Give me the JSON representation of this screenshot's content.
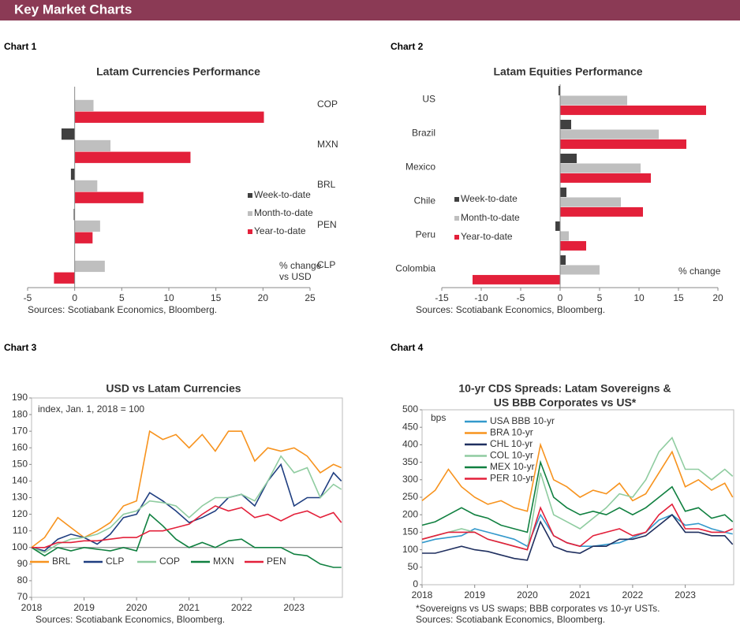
{
  "page_title": "Key Market Charts",
  "chart_data": [
    {
      "type": "bar",
      "orientation": "horizontal",
      "label": "Chart 1",
      "title": "Latam Currencies Performance",
      "categories": [
        "COP",
        "MXN",
        "BRL",
        "PEN",
        "CLP"
      ],
      "category_side": "right",
      "series": [
        {
          "name": "Week-to-date",
          "color": "#404040",
          "values": [
            0,
            -1.4,
            -0.4,
            -0.1,
            0
          ]
        },
        {
          "name": "Month-to-date",
          "color": "#bfbfbf",
          "values": [
            2.0,
            3.8,
            2.4,
            2.7,
            3.2
          ]
        },
        {
          "name": "Year-to-date",
          "color": "#e3203a",
          "values": [
            20.1,
            12.3,
            7.3,
            1.9,
            -2.2
          ]
        }
      ],
      "xlim": [
        -5,
        25
      ],
      "xticks": [
        -5,
        0,
        5,
        10,
        15,
        20,
        25
      ],
      "annotation": [
        "% change",
        "vs USD"
      ],
      "source": "Sources: Scotiabank Economics, Bloomberg."
    },
    {
      "type": "bar",
      "orientation": "horizontal",
      "label": "Chart 2",
      "title": "Latam Equities Performance",
      "categories": [
        "US",
        "Brazil",
        "Mexico",
        "Chile",
        "Peru",
        "Colombia"
      ],
      "category_side": "left",
      "series": [
        {
          "name": "Week-to-date",
          "color": "#404040",
          "values": [
            -0.2,
            1.4,
            2.1,
            0.8,
            -0.6,
            0.7
          ]
        },
        {
          "name": "Month-to-date",
          "color": "#bfbfbf",
          "values": [
            8.5,
            12.5,
            10.2,
            7.7,
            1.1,
            5.0
          ]
        },
        {
          "name": "Year-to-date",
          "color": "#e3203a",
          "values": [
            18.5,
            16.0,
            11.5,
            10.5,
            3.3,
            -11.1
          ]
        }
      ],
      "xlim": [
        -15,
        20
      ],
      "xticks": [
        -15,
        -10,
        -5,
        0,
        5,
        10,
        15,
        20
      ],
      "annotation": [
        "% change"
      ],
      "source": "Sources: Scotiabank Economics, Bloomberg."
    },
    {
      "type": "line",
      "label": "Chart 3",
      "title": "USD vs Latam Currencies",
      "x": [
        2018,
        2018.25,
        2018.5,
        2018.75,
        2019,
        2019.25,
        2019.5,
        2019.75,
        2020,
        2020.25,
        2020.5,
        2020.75,
        2021,
        2021.25,
        2021.5,
        2021.75,
        2022,
        2022.25,
        2022.5,
        2022.75,
        2023,
        2023.25,
        2023.5,
        2023.75,
        2023.9
      ],
      "series": [
        {
          "name": "BRL",
          "color": "#f7931e",
          "values": [
            100,
            106,
            118,
            112,
            106,
            110,
            115,
            125,
            128,
            170,
            165,
            168,
            160,
            168,
            158,
            170,
            170,
            152,
            160,
            158,
            160,
            155,
            145,
            150,
            148
          ]
        },
        {
          "name": "CLP",
          "color": "#1f3e80",
          "values": [
            100,
            98,
            105,
            108,
            106,
            102,
            108,
            118,
            120,
            133,
            128,
            122,
            115,
            118,
            122,
            130,
            132,
            125,
            140,
            150,
            125,
            130,
            130,
            145,
            140
          ]
        },
        {
          "name": "COP",
          "color": "#8fcca0",
          "values": [
            100,
            97,
            102,
            105,
            106,
            108,
            112,
            120,
            122,
            128,
            127,
            125,
            118,
            125,
            130,
            130,
            132,
            128,
            140,
            155,
            145,
            148,
            130,
            138,
            135
          ]
        },
        {
          "name": "MXN",
          "color": "#108040",
          "values": [
            100,
            95,
            100,
            98,
            100,
            99,
            98,
            100,
            98,
            120,
            113,
            105,
            100,
            103,
            100,
            104,
            105,
            100,
            100,
            100,
            96,
            95,
            90,
            88,
            88
          ]
        },
        {
          "name": "PEN",
          "color": "#e3203a",
          "values": [
            100,
            100,
            103,
            103,
            104,
            104,
            105,
            106,
            106,
            110,
            110,
            112,
            114,
            120,
            125,
            122,
            124,
            118,
            120,
            116,
            120,
            122,
            118,
            121,
            115
          ]
        }
      ],
      "xlim": [
        2018,
        2023.92
      ],
      "xticks": [
        2018,
        2019,
        2020,
        2021,
        2022,
        2023
      ],
      "ylim": [
        70,
        190
      ],
      "yticks": [
        70,
        80,
        90,
        100,
        110,
        120,
        130,
        140,
        150,
        160,
        170,
        180,
        190
      ],
      "reference_line": 100,
      "legend": "bottom",
      "annotation": [
        "index, Jan. 1, 2018 = 100"
      ],
      "source": "Sources: Scotiabank Economics, Bloomberg."
    },
    {
      "type": "line",
      "label": "Chart 4",
      "title": [
        "10-yr CDS Spreads: Latam Sovereigns &",
        "US BBB Corporates vs US*"
      ],
      "x": [
        2018,
        2018.25,
        2018.5,
        2018.75,
        2019,
        2019.25,
        2019.5,
        2019.75,
        2020,
        2020.25,
        2020.5,
        2020.75,
        2021,
        2021.25,
        2021.5,
        2021.75,
        2022,
        2022.25,
        2022.5,
        2022.75,
        2023,
        2023.25,
        2023.5,
        2023.75,
        2023.9
      ],
      "series": [
        {
          "name": "USA BBB 10-yr",
          "color": "#3399cc",
          "values": [
            120,
            130,
            135,
            140,
            160,
            150,
            140,
            130,
            110,
            200,
            140,
            120,
            110,
            110,
            115,
            120,
            135,
            150,
            185,
            200,
            170,
            175,
            160,
            150,
            145
          ]
        },
        {
          "name": "BRA 10-yr",
          "color": "#f7931e",
          "values": [
            240,
            270,
            330,
            280,
            250,
            230,
            240,
            220,
            210,
            400,
            300,
            280,
            250,
            270,
            260,
            290,
            240,
            260,
            320,
            380,
            280,
            300,
            270,
            290,
            250
          ]
        },
        {
          "name": "CHL 10-yr",
          "color": "#1f2f5f",
          "values": [
            90,
            90,
            100,
            110,
            100,
            95,
            85,
            75,
            70,
            180,
            110,
            95,
            90,
            110,
            110,
            130,
            130,
            140,
            170,
            200,
            150,
            150,
            140,
            140,
            115
          ]
        },
        {
          "name": "COL 10-yr",
          "color": "#8fcca0",
          "values": [
            130,
            140,
            150,
            160,
            150,
            130,
            120,
            110,
            100,
            320,
            200,
            180,
            160,
            190,
            220,
            260,
            250,
            300,
            380,
            420,
            330,
            330,
            300,
            330,
            310
          ]
        },
        {
          "name": "MEX 10-yr",
          "color": "#108040",
          "values": [
            170,
            180,
            200,
            220,
            200,
            190,
            170,
            160,
            150,
            350,
            250,
            220,
            200,
            210,
            200,
            220,
            200,
            220,
            250,
            280,
            210,
            220,
            190,
            200,
            180
          ]
        },
        {
          "name": "PER 10-yr",
          "color": "#e3203a",
          "values": [
            130,
            140,
            150,
            150,
            150,
            130,
            120,
            110,
            100,
            220,
            140,
            120,
            110,
            140,
            150,
            160,
            140,
            150,
            200,
            230,
            160,
            160,
            150,
            150,
            160
          ]
        }
      ],
      "xlim": [
        2018,
        2023.92
      ],
      "xticks": [
        2018,
        2019,
        2020,
        2021,
        2022,
        2023
      ],
      "ylim": [
        0,
        500
      ],
      "yticks": [
        0,
        50,
        100,
        150,
        200,
        250,
        300,
        350,
        400,
        450,
        500
      ],
      "legend": "upper left",
      "annotation": [
        "bps"
      ],
      "footnote": "*Sovereigns vs US swaps; BBB corporates vs 10-yr USTs.",
      "source": "Sources: Scotiabank Economics, Bloomberg."
    }
  ]
}
